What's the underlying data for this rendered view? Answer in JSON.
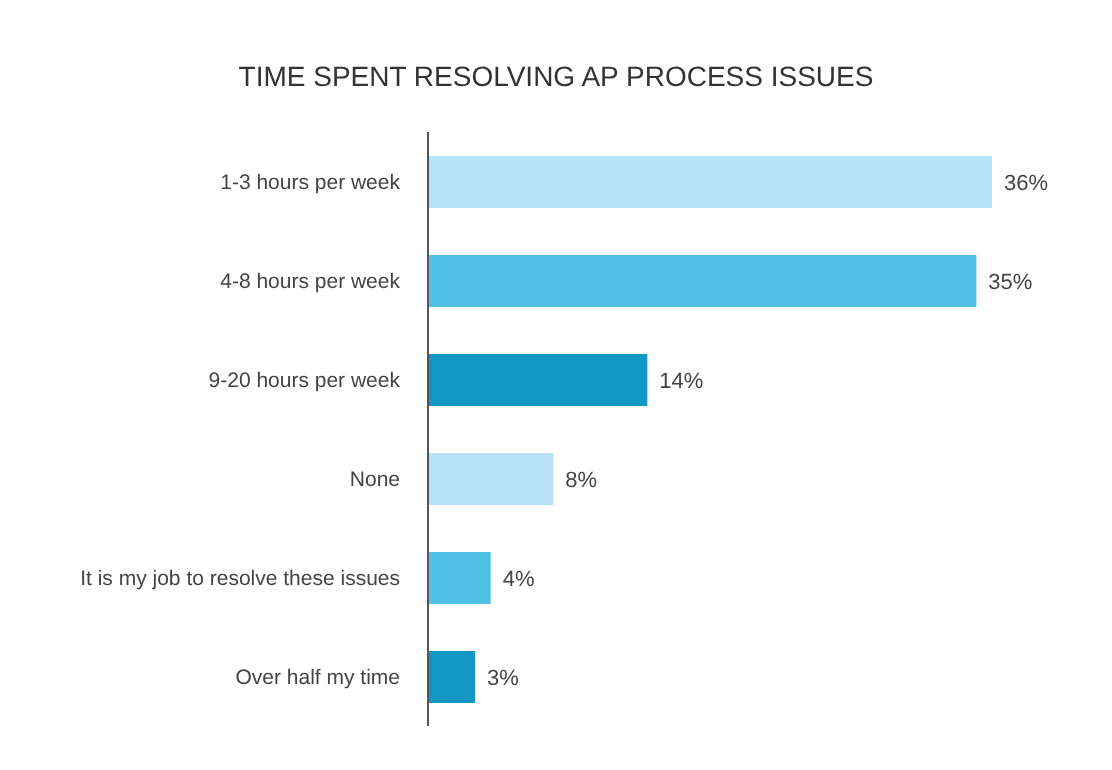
{
  "chart_data": {
    "type": "bar",
    "orientation": "horizontal",
    "title": "TIME SPENT RESOLVING AP PROCESS ISSUES",
    "categories": [
      "1-3 hours per week",
      "4-8 hours per week",
      "9-20 hours per week",
      "None",
      "It is my job to resolve these issues",
      "Over half my time"
    ],
    "values": [
      36,
      35,
      14,
      8,
      4,
      3
    ],
    "value_labels": [
      "36%",
      "35%",
      "14%",
      "8%",
      "4%",
      "3%"
    ],
    "colors": [
      "#b8e2f6",
      "#4fbfe6",
      "#1296c2",
      "#b8e2f6",
      "#4fbfe6",
      "#1296c2"
    ],
    "grid": false
  }
}
